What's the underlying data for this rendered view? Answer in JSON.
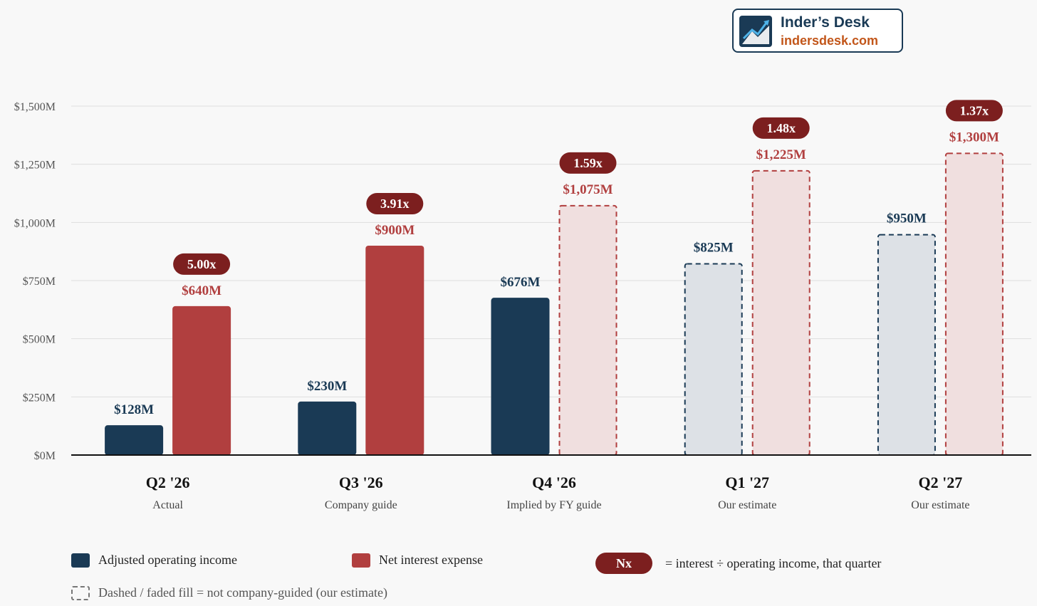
{
  "brand": {
    "name": "Inder’s Desk",
    "url": "indersdesk.com"
  },
  "chart_data": {
    "type": "bar",
    "categories": [
      "Q2 '26",
      "Q3 '26",
      "Q4 '26",
      "Q1 '27",
      "Q2 '27"
    ],
    "category_sublabels": [
      "Actual",
      "Company guide",
      "Implied by FY guide",
      "Our estimate",
      "Our estimate"
    ],
    "y_ticks": [
      "$0M",
      "$250M",
      "$500M",
      "$750M",
      "$1,000M",
      "$1,250M",
      "$1,500M"
    ],
    "ylim": [
      0,
      1500
    ],
    "grid": true,
    "series": [
      {
        "name": "Adjusted operating income",
        "color": "#1a3a55",
        "estimate_fill": "#dde1e6",
        "values": [
          128,
          230,
          676,
          825,
          950
        ],
        "labels": [
          "$128M",
          "$230M",
          "$676M",
          "$825M",
          "$950M"
        ],
        "estimated": [
          false,
          false,
          false,
          true,
          true
        ]
      },
      {
        "name": "Net interest expense",
        "color": "#b13f3f",
        "estimate_fill": "#f0dfdf",
        "values": [
          640,
          900,
          1075,
          1225,
          1300
        ],
        "labels": [
          "$640M",
          "$900M",
          "$1,075M",
          "$1,225M",
          "$1,300M"
        ],
        "estimated": [
          false,
          false,
          true,
          true,
          true
        ]
      }
    ],
    "ratios": [
      "5.00x",
      "3.91x",
      "1.59x",
      "1.48x",
      "1.37x"
    ],
    "ratio_color": "#7c1f1f"
  },
  "legend": {
    "items": [
      {
        "label": "Adjusted operating income",
        "color": "#1a3a55"
      },
      {
        "label": "Net interest expense",
        "color": "#b13f3f"
      }
    ],
    "ratio_pill": "Nx",
    "ratio_text": "= interest ÷ operating income, that quarter",
    "estimate_note": "Dashed / faded fill = not company-guided (our estimate)"
  }
}
